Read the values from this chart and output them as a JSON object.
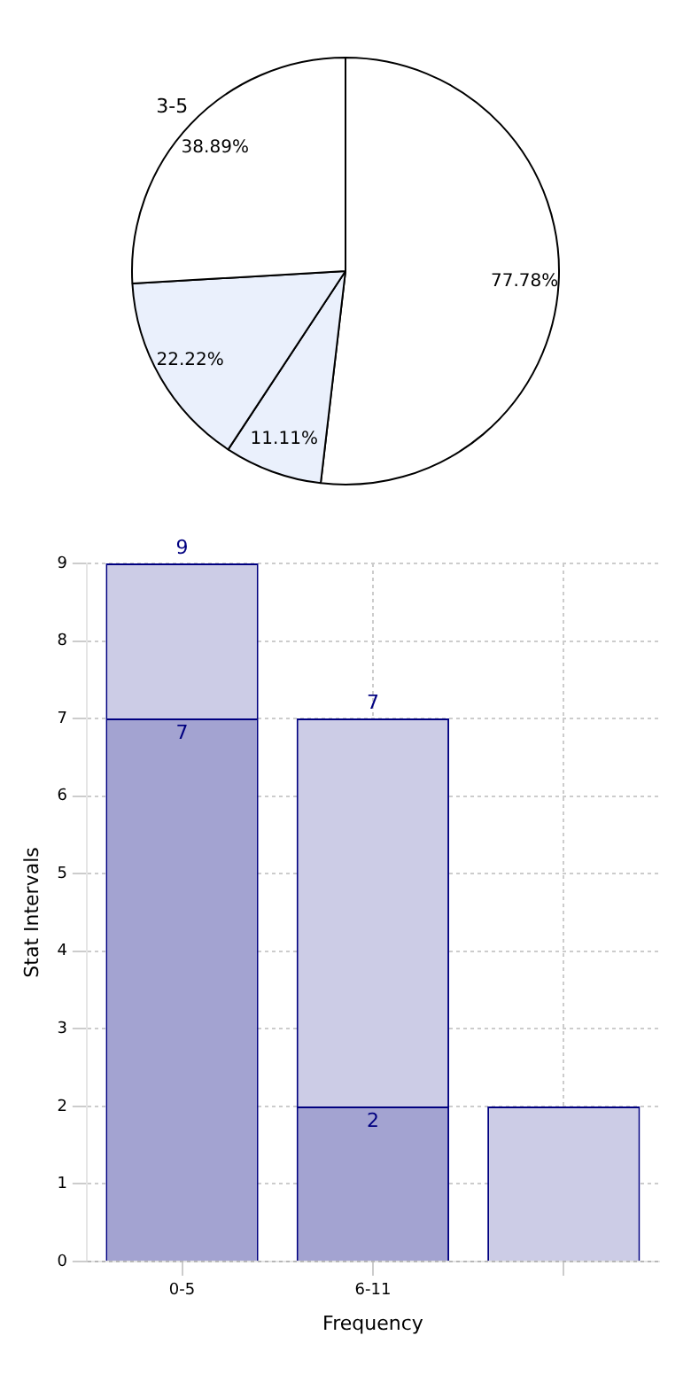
{
  "chart_data": [
    {
      "type": "pie",
      "categories": [
        null,
        null,
        null,
        "3-5"
      ],
      "values": [
        77.78,
        11.11,
        22.22,
        38.89
      ],
      "colors": [
        "#ffffff",
        "#eaf0fc",
        "#eaf0fc",
        "#ffffff"
      ],
      "value_labels": [
        "77.78%",
        "11.11%",
        "22.22%",
        "38.89%"
      ],
      "legend": false
    },
    {
      "type": "bar",
      "categories": [
        "0-5",
        "6-11",
        null
      ],
      "xlabel": "Frequency",
      "ylabel": "Stat Intervals",
      "ylim": [
        0,
        9
      ],
      "yticks": [
        0,
        1,
        2,
        3,
        4,
        5,
        6,
        7,
        8,
        9
      ],
      "grid": true,
      "legend": false,
      "stacked": true,
      "totals": [
        "9",
        "7",
        null
      ],
      "series": [
        {
          "color": "#a3a3d1",
          "values": [
            7,
            2,
            null
          ],
          "value_labels": [
            "7",
            "2",
            null
          ]
        },
        {
          "color": "#cccce6",
          "values": [
            2,
            5,
            2
          ]
        }
      ]
    }
  ]
}
